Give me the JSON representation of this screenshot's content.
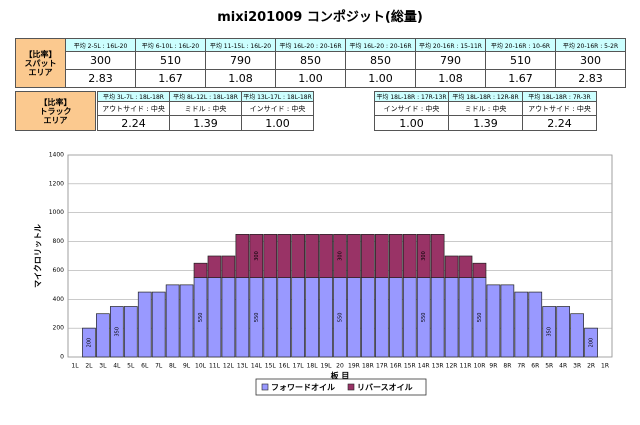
{
  "title": "mixi201009 コンポジット(総量)",
  "spot_table": {
    "label": [
      "【比率】",
      "スパット",
      "エリア"
    ],
    "headers": [
      "平均 2-5L : 16L-20",
      "平均 6-10L : 16L-20",
      "平均 11-15L : 16L-20",
      "平均 16L-20 : 20-16R",
      "平均 16L-20 : 20-16R",
      "平均 20-16R : 15-11R",
      "平均 20-16R : 10-6R",
      "平均 20-16R : 5-2R"
    ],
    "rows": [
      [
        "300",
        "510",
        "790",
        "850",
        "850",
        "790",
        "510",
        "300"
      ],
      [
        "2.83",
        "1.67",
        "1.08",
        "1.00",
        "1.00",
        "1.08",
        "1.67",
        "2.83"
      ]
    ]
  },
  "track_table": {
    "label": [
      "【比率】",
      "トラック",
      "エリア"
    ],
    "headers": [
      "平均 3L-7L : 18L-18R",
      "平均 8L-12L : 18L-18R",
      "平均 13L-17L : 18L-18R",
      "平均 18L-18R : 17R-13R",
      "平均 18L-18R : 12R-8R",
      "平均 18L-18R : 7R-3R"
    ],
    "positions": [
      "アウトサイド : 中央",
      "ミドル : 中央",
      "インサイド : 中央",
      "インサイド : 中央",
      "ミドル : 中央",
      "アウトサイド : 中央"
    ],
    "values": [
      "2.24",
      "1.39",
      "1.00",
      "1.00",
      "1.39",
      "2.24"
    ]
  },
  "chart_data": {
    "type": "bar",
    "stacked": true,
    "x_label": "板 目",
    "y_label": "マイクロリットル",
    "grid": true,
    "legend": "bottom",
    "categories": [
      "1L",
      "2L",
      "3L",
      "4L",
      "5L",
      "6L",
      "7L",
      "8L",
      "9L",
      "10L",
      "11L",
      "12L",
      "13L",
      "14L",
      "15L",
      "16L",
      "17L",
      "18L",
      "19L",
      "20",
      "19R",
      "18R",
      "17R",
      "16R",
      "15R",
      "14R",
      "13R",
      "12R",
      "11R",
      "10R",
      "9R",
      "8R",
      "7R",
      "6R",
      "5R",
      "4R",
      "3R",
      "2R",
      "1R"
    ],
    "series": [
      {
        "name": "フォワードオイル",
        "color": "#9999ff",
        "values": [
          0,
          200,
          300,
          350,
          350,
          450,
          450,
          500,
          500,
          550,
          550,
          550,
          550,
          550,
          550,
          550,
          550,
          550,
          550,
          550,
          550,
          550,
          550,
          550,
          550,
          550,
          550,
          550,
          550,
          550,
          500,
          500,
          450,
          450,
          350,
          350,
          300,
          200,
          0
        ],
        "value_labels": [
          null,
          "200",
          null,
          "350",
          null,
          null,
          null,
          null,
          null,
          "550",
          null,
          null,
          null,
          "550",
          null,
          null,
          null,
          null,
          null,
          "550",
          null,
          null,
          null,
          null,
          null,
          "550",
          null,
          null,
          null,
          "550",
          null,
          null,
          null,
          null,
          "350",
          null,
          null,
          "200",
          null
        ]
      },
      {
        "name": "リバースオイル",
        "color": "#993366",
        "values": [
          0,
          0,
          0,
          0,
          0,
          0,
          0,
          0,
          0,
          100,
          150,
          150,
          300,
          300,
          300,
          300,
          300,
          300,
          300,
          300,
          300,
          300,
          300,
          300,
          300,
          300,
          300,
          150,
          150,
          100,
          0,
          0,
          0,
          0,
          0,
          0,
          0,
          0,
          0
        ],
        "value_labels": [
          null,
          null,
          null,
          null,
          null,
          null,
          null,
          null,
          null,
          null,
          null,
          null,
          null,
          "300",
          null,
          null,
          null,
          null,
          null,
          "300",
          null,
          null,
          null,
          null,
          null,
          "300",
          null,
          null,
          null,
          null,
          null,
          null,
          null,
          null,
          null,
          null,
          null,
          null,
          null
        ]
      }
    ],
    "ylim": [
      0,
      1400
    ],
    "yticks": [
      0,
      200,
      400,
      600,
      800,
      1000,
      1200,
      1400
    ]
  }
}
